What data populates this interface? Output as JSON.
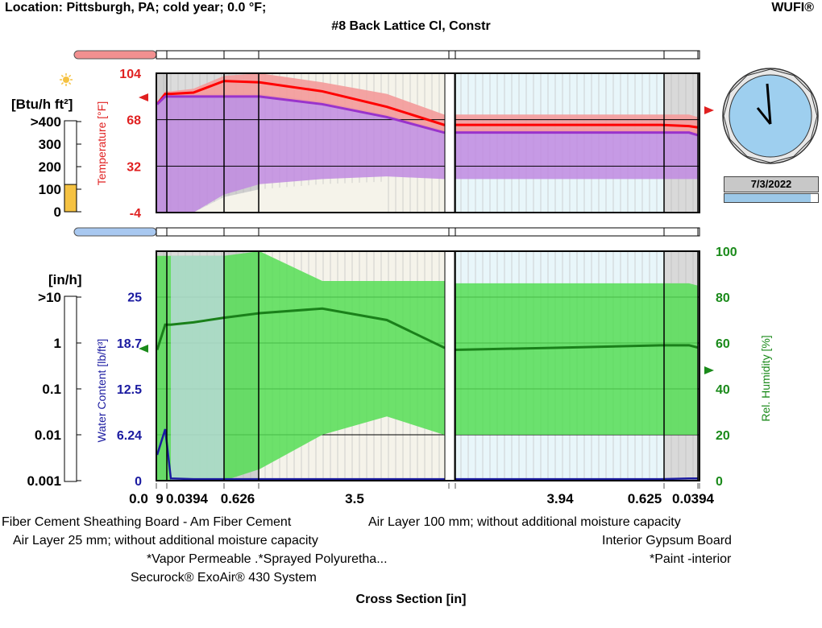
{
  "header": {
    "location": "Location: Pittsburgh, PA; cold year; 0.0 °F;",
    "brand": "WUFI®",
    "title": "#8 Back Lattice Cl, Constr"
  },
  "flux": {
    "unit": "[Btu/h ft²]",
    "ticks": [
      ">400",
      "300",
      "200",
      "100",
      "0"
    ],
    "level": 120,
    "color": "#f5c242"
  },
  "rain": {
    "unit": "[in/h]",
    "ticks": [
      ">10",
      "1",
      "0.1",
      "0.01",
      "0.001"
    ]
  },
  "clock": {
    "date": "7/3/2022",
    "progress": 0.92,
    "hour_hand": "11",
    "minute_hand": "0"
  },
  "xaxis": {
    "title": "Cross Section [in]",
    "layer_labels": [
      "0.0",
      "9",
      "0.0394",
      "0.626",
      "3.5",
      "3.94",
      "0.625",
      "0.0394"
    ]
  },
  "legend": {
    "materials": [
      "Fiber Cement Sheathing Board - Am Fiber Cement",
      "Air Layer 25 mm; without additional moisture capacity",
      "*Vapor Permeable .*Sprayed Polyuretha...",
      "Securock® ExoAir® 430 System",
      "Air Layer 100 mm; without additional moisture capacity",
      "Interior Gypsum Board",
      "*Paint -interior"
    ]
  },
  "chart_data": [
    {
      "type": "line",
      "ylabel": "Temperature [°F]",
      "ylim": [
        -4,
        104
      ],
      "yticks": [
        "104",
        "68",
        "32",
        "-4"
      ],
      "colors": {
        "temp": "#ff0000",
        "dew": "#9933cc"
      },
      "x": [
        0.0,
        0.09,
        0.2,
        0.5,
        0.7,
        1.0,
        2.0,
        3.0,
        4.2,
        4.4,
        6.0,
        7.5,
        8.2,
        8.5
      ],
      "series": [
        {
          "name": "temperature",
          "values": [
            80,
            88,
            88,
            89,
            98,
            97,
            90,
            78,
            64,
            64,
            64,
            64,
            63,
            62
          ]
        },
        {
          "name": "dew point",
          "values": [
            80,
            86,
            86,
            86,
            86,
            86,
            80,
            70,
            58,
            58,
            58,
            58,
            58,
            56
          ]
        }
      ]
    },
    {
      "type": "line",
      "ylabel": "Water Content [lb/ft³]",
      "ylim": [
        0,
        31.2
      ],
      "yticks": [
        "25",
        "18.7",
        "12.5",
        "6.24",
        "0"
      ],
      "y2label": "Rel. Humidity [%]",
      "y2lim": [
        0,
        100
      ],
      "y2ticks": [
        "100",
        "80",
        "60",
        "40",
        "20",
        "0"
      ],
      "colors": {
        "rh": "#1a801a",
        "wc": "#1a1aa0"
      },
      "x": [
        0.0,
        0.09,
        0.2,
        0.5,
        0.7,
        1.0,
        2.0,
        3.0,
        4.2,
        4.4,
        6.0,
        7.5,
        8.2,
        8.5
      ],
      "series": [
        {
          "name": "relative humidity",
          "values": [
            57,
            68,
            68,
            69,
            71,
            73,
            75,
            70,
            58,
            57,
            58,
            59,
            59,
            58
          ]
        },
        {
          "name": "water content",
          "values": [
            3.5,
            7,
            0.3,
            0.2,
            0.2,
            0.2,
            0.2,
            0.2,
            0.2,
            0.2,
            0.2,
            0.2,
            0.3,
            0.3
          ]
        }
      ]
    }
  ]
}
